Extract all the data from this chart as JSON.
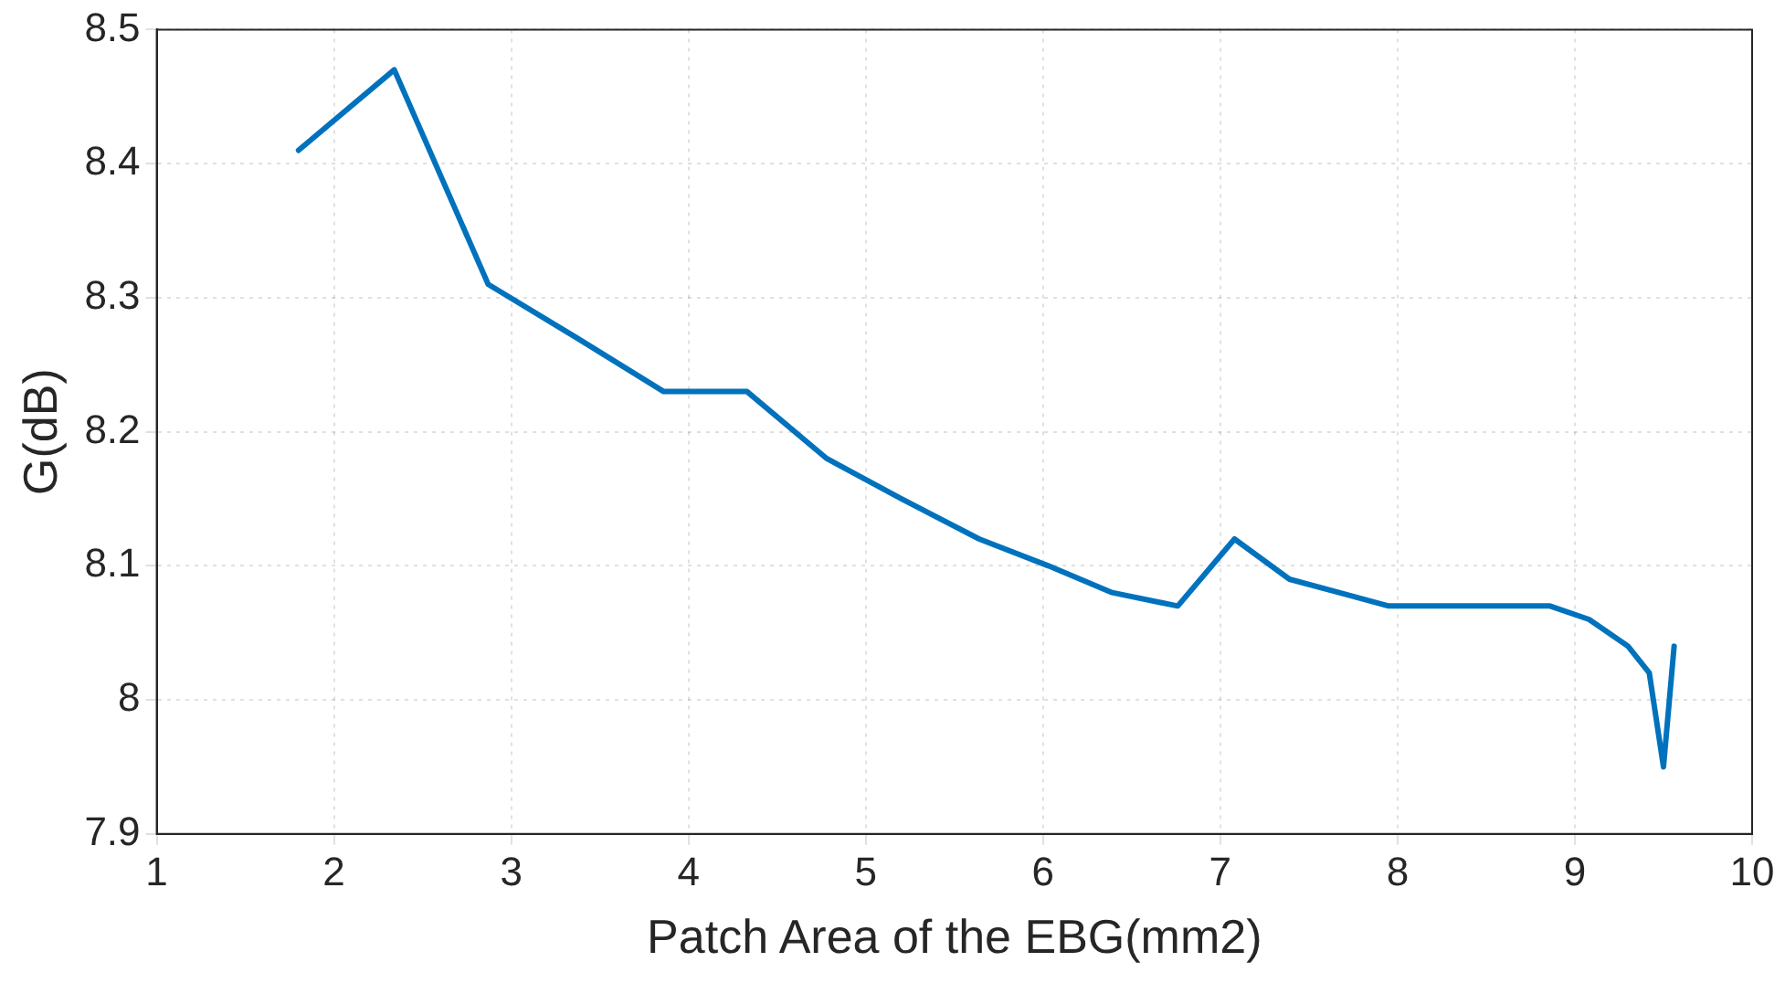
{
  "chart_data": {
    "type": "line",
    "xlabel": "Patch Area of the EBG(mm2)",
    "ylabel": "G(dB)",
    "x": [
      1.8,
      2.34,
      2.87,
      3.37,
      3.86,
      4.33,
      4.78,
      5.2,
      5.64,
      6.03,
      6.39,
      6.76,
      7.08,
      7.39,
      7.67,
      7.95,
      8.86,
      9.08,
      9.3,
      9.42,
      9.5,
      9.56
    ],
    "series": [
      {
        "color": "#0072bd",
        "values": [
          8.41,
          8.47,
          8.31,
          8.27,
          8.23,
          8.23,
          8.18,
          8.15,
          8.12,
          8.1,
          8.08,
          8.07,
          8.12,
          8.09,
          8.08,
          8.07,
          8.07,
          8.06,
          8.04,
          8.02,
          7.95,
          8.04
        ]
      }
    ],
    "xlim": [
      1,
      10
    ],
    "xticks": [
      1,
      2,
      3,
      4,
      5,
      6,
      7,
      8,
      9,
      10
    ],
    "ylim": [
      7.9,
      8.5
    ],
    "yticks": [
      7.9,
      8,
      8.1,
      8.2,
      8.3,
      8.4,
      8.5
    ],
    "grid": true,
    "legend": false,
    "marker": "none",
    "line_style": "solid"
  }
}
